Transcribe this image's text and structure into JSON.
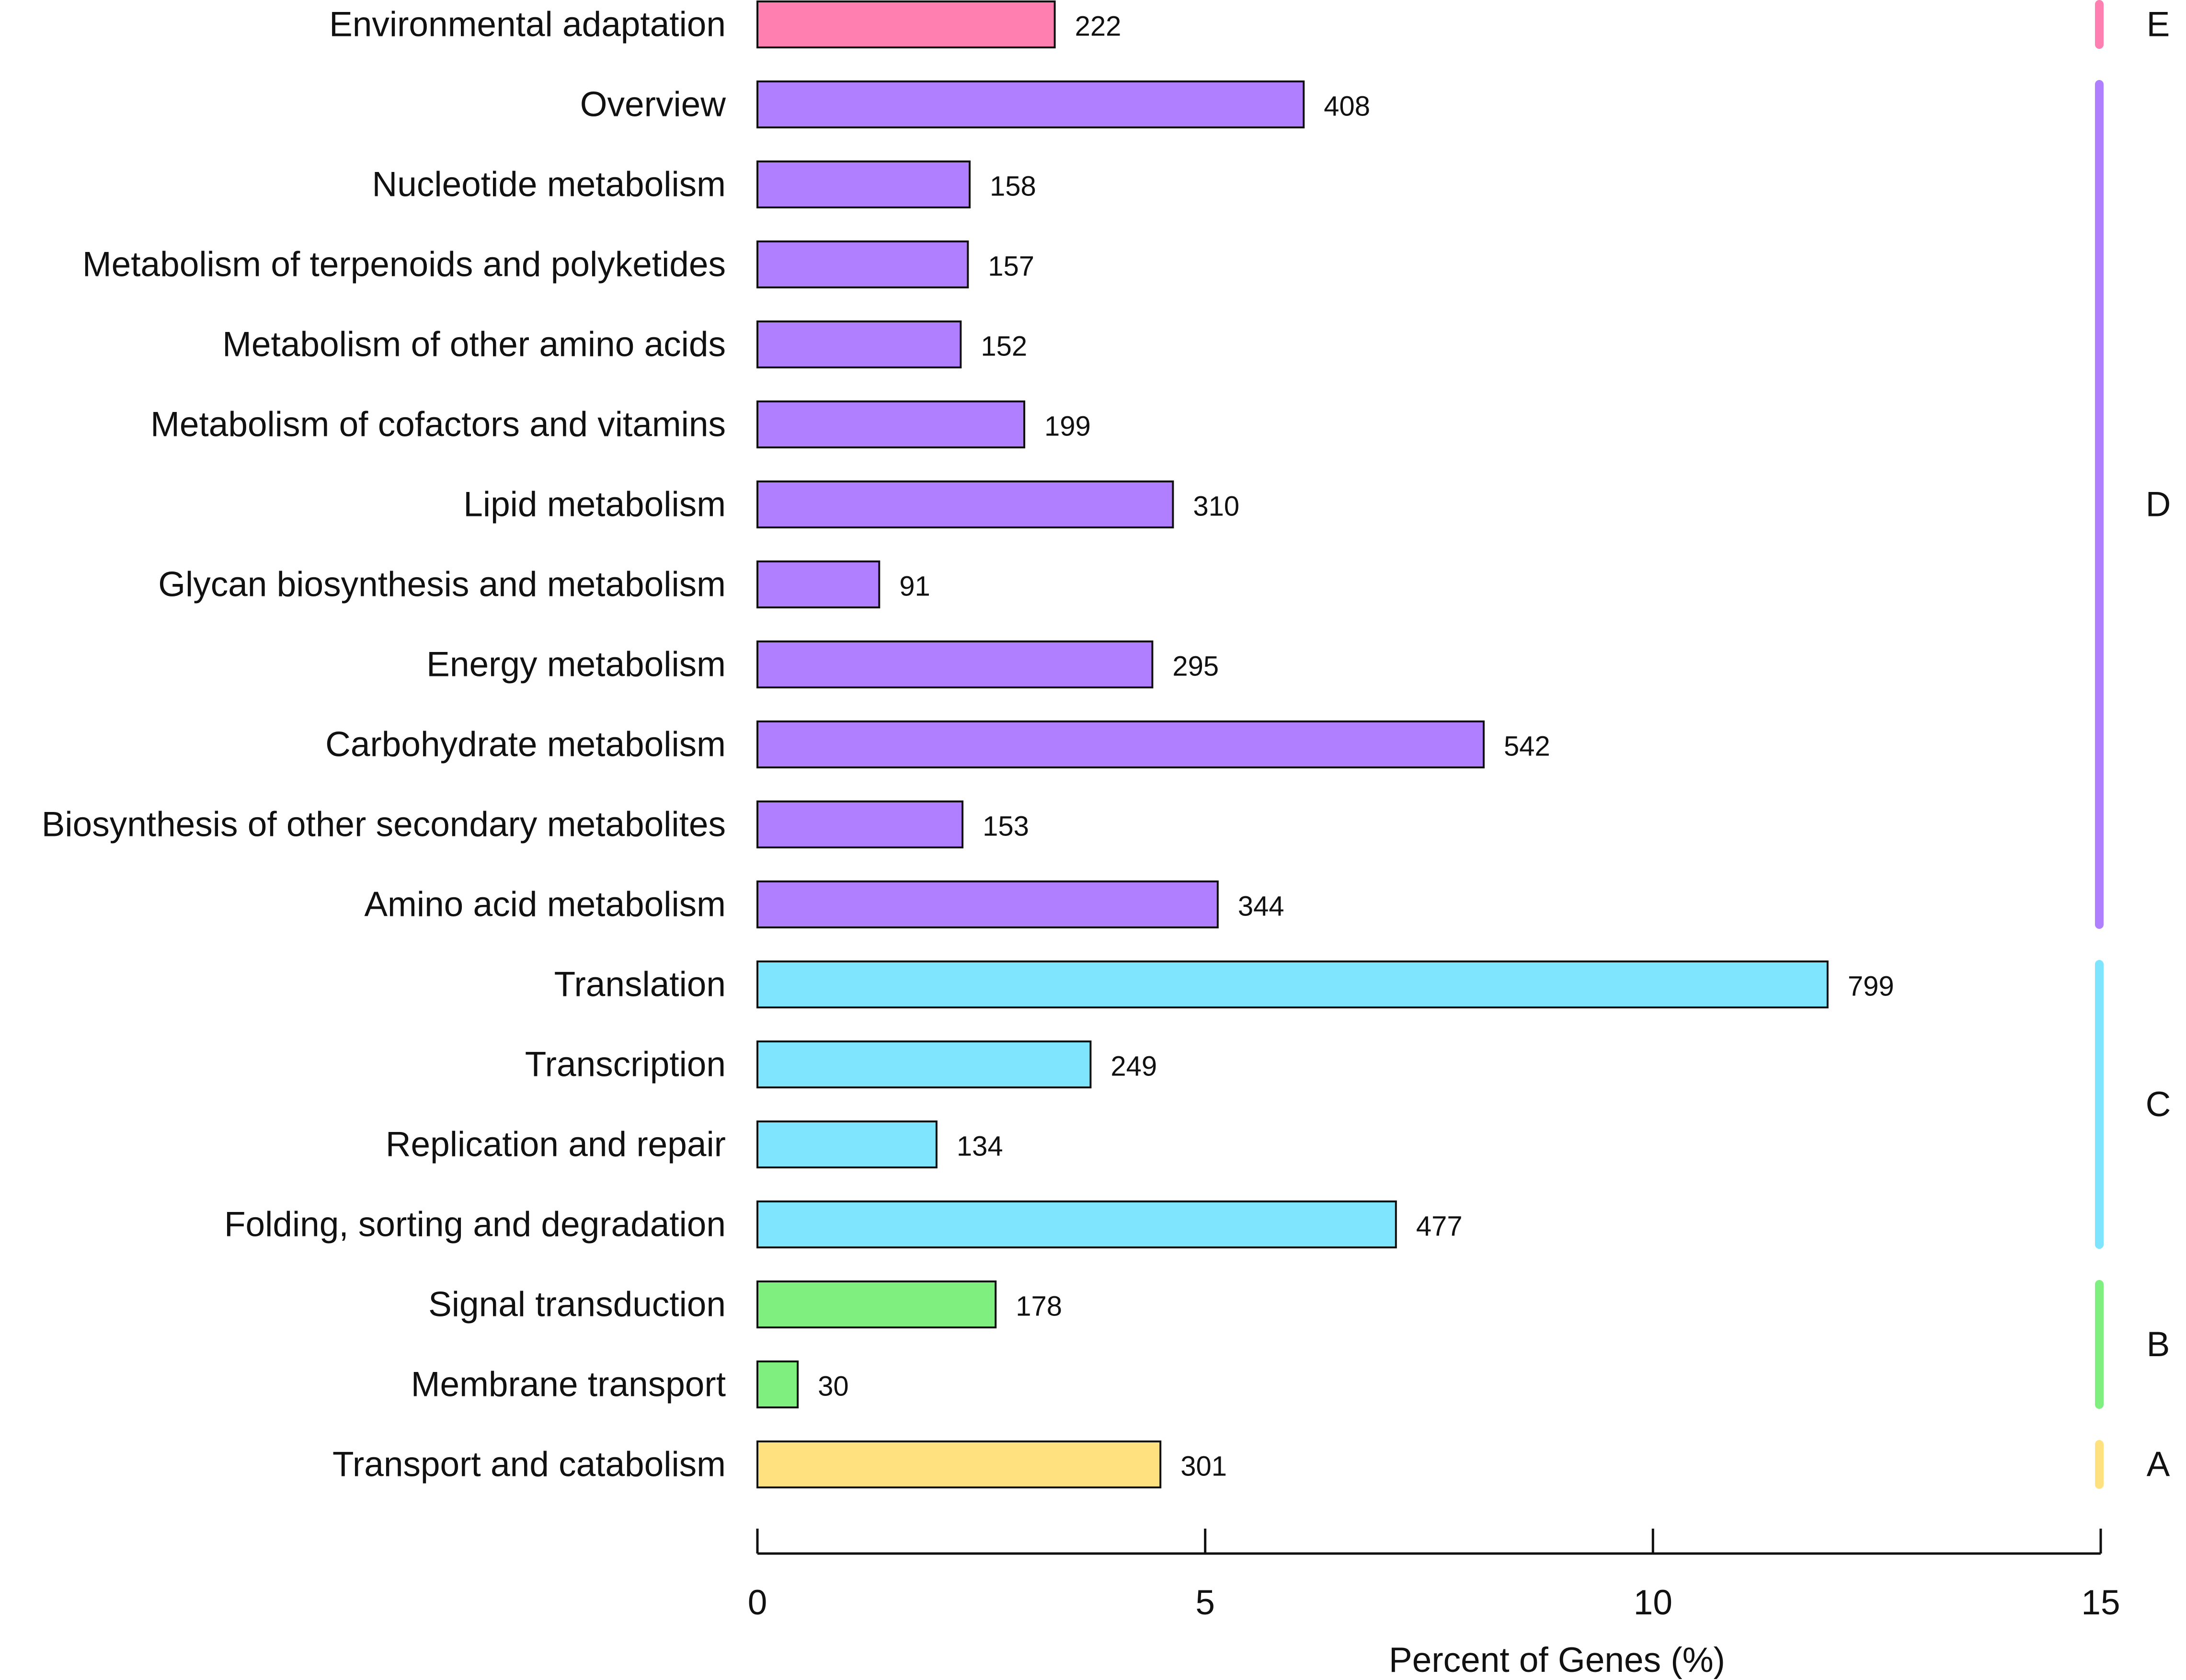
{
  "chart_data": {
    "type": "bar",
    "orientation": "horizontal",
    "xlabel": "Percent of Genes (%)",
    "ylabel": "",
    "xlim": [
      0,
      15
    ],
    "xticks": [
      0,
      5,
      10,
      15
    ],
    "xtick_labels": [
      "0",
      "5",
      "10",
      "15"
    ],
    "categories": [
      {
        "label": "Environmental adaptation",
        "count": 222,
        "percent": 3.32,
        "group": "E"
      },
      {
        "label": "Overview",
        "count": 408,
        "percent": 6.1,
        "group": "D"
      },
      {
        "label": "Nucleotide metabolism",
        "count": 158,
        "percent": 2.37,
        "group": "D"
      },
      {
        "label": "Metabolism of terpenoids and polyketides",
        "count": 157,
        "percent": 2.35,
        "group": "D"
      },
      {
        "label": "Metabolism of other amino acids",
        "count": 152,
        "percent": 2.27,
        "group": "D"
      },
      {
        "label": "Metabolism of cofactors and vitamins",
        "count": 199,
        "percent": 2.98,
        "group": "D"
      },
      {
        "label": "Lipid metabolism",
        "count": 310,
        "percent": 4.64,
        "group": "D"
      },
      {
        "label": "Glycan biosynthesis and metabolism",
        "count": 91,
        "percent": 1.36,
        "group": "D"
      },
      {
        "label": "Energy metabolism",
        "count": 295,
        "percent": 4.41,
        "group": "D"
      },
      {
        "label": "Carbohydrate metabolism",
        "count": 542,
        "percent": 8.11,
        "group": "D"
      },
      {
        "label": "Biosynthesis of other secondary metabolites",
        "count": 153,
        "percent": 2.29,
        "group": "D"
      },
      {
        "label": "Amino acid metabolism",
        "count": 344,
        "percent": 5.14,
        "group": "D"
      },
      {
        "label": "Translation",
        "count": 799,
        "percent": 11.95,
        "group": "C"
      },
      {
        "label": "Transcription",
        "count": 249,
        "percent": 3.72,
        "group": "C"
      },
      {
        "label": "Replication and repair",
        "count": 134,
        "percent": 2.0,
        "group": "C"
      },
      {
        "label": "Folding, sorting and degradation",
        "count": 477,
        "percent": 7.13,
        "group": "C"
      },
      {
        "label": "Signal transduction",
        "count": 178,
        "percent": 2.66,
        "group": "B"
      },
      {
        "label": "Membrane transport",
        "count": 30,
        "percent": 0.45,
        "group": "B"
      },
      {
        "label": "Transport and catabolism",
        "count": 301,
        "percent": 4.5,
        "group": "A"
      }
    ],
    "groups": [
      {
        "letter": "E",
        "color": "#ff7fb0",
        "first": 0,
        "last": 0
      },
      {
        "letter": "D",
        "color": "#b07fff",
        "first": 1,
        "last": 11
      },
      {
        "letter": "C",
        "color": "#7fe5ff",
        "first": 12,
        "last": 15
      },
      {
        "letter": "B",
        "color": "#7fef7f",
        "first": 16,
        "last": 17
      },
      {
        "letter": "A",
        "color": "#ffe17f",
        "first": 18,
        "last": 18
      }
    ]
  }
}
